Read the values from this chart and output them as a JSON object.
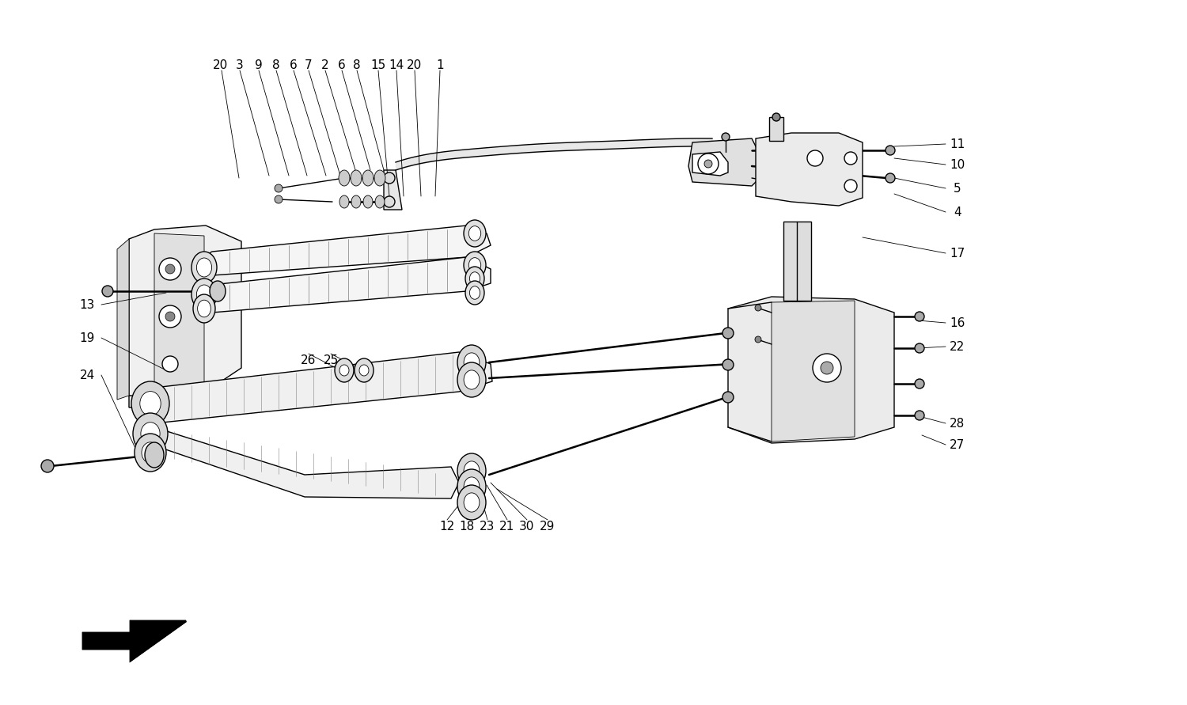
{
  "bg_color": "#ffffff",
  "line_color": "#000000",
  "lw": 1.0,
  "lw_thick": 1.8,
  "lw_thin": 0.6,
  "fig_width": 15.0,
  "fig_height": 8.91,
  "dpi": 100,
  "top_labels": [
    [
      "20",
      278,
      82
    ],
    [
      "3",
      303,
      82
    ],
    [
      "9",
      327,
      82
    ],
    [
      "8",
      349,
      82
    ],
    [
      "6",
      371,
      82
    ],
    [
      "7",
      390,
      82
    ],
    [
      "2",
      411,
      82
    ],
    [
      "6",
      432,
      82
    ],
    [
      "8",
      451,
      82
    ],
    [
      "15",
      478,
      82
    ],
    [
      "14",
      501,
      82
    ],
    [
      "20",
      524,
      82
    ],
    [
      "1",
      556,
      82
    ]
  ],
  "right_labels": [
    [
      "11",
      1210,
      182
    ],
    [
      "10",
      1210,
      208
    ],
    [
      "5",
      1210,
      238
    ],
    [
      "4",
      1210,
      268
    ],
    [
      "17",
      1210,
      320
    ],
    [
      "16",
      1210,
      408
    ],
    [
      "22",
      1210,
      438
    ],
    [
      "28",
      1210,
      535
    ],
    [
      "27",
      1210,
      562
    ]
  ],
  "left_labels": [
    [
      "13",
      110,
      385
    ],
    [
      "19",
      110,
      427
    ],
    [
      "24",
      110,
      474
    ]
  ],
  "bottom_labels": [
    [
      "26",
      390,
      455
    ],
    [
      "25",
      418,
      455
    ],
    [
      "12",
      565,
      665
    ],
    [
      "18",
      590,
      665
    ],
    [
      "23",
      616,
      665
    ],
    [
      "21",
      641,
      665
    ],
    [
      "30",
      666,
      665
    ],
    [
      "29",
      692,
      665
    ]
  ]
}
